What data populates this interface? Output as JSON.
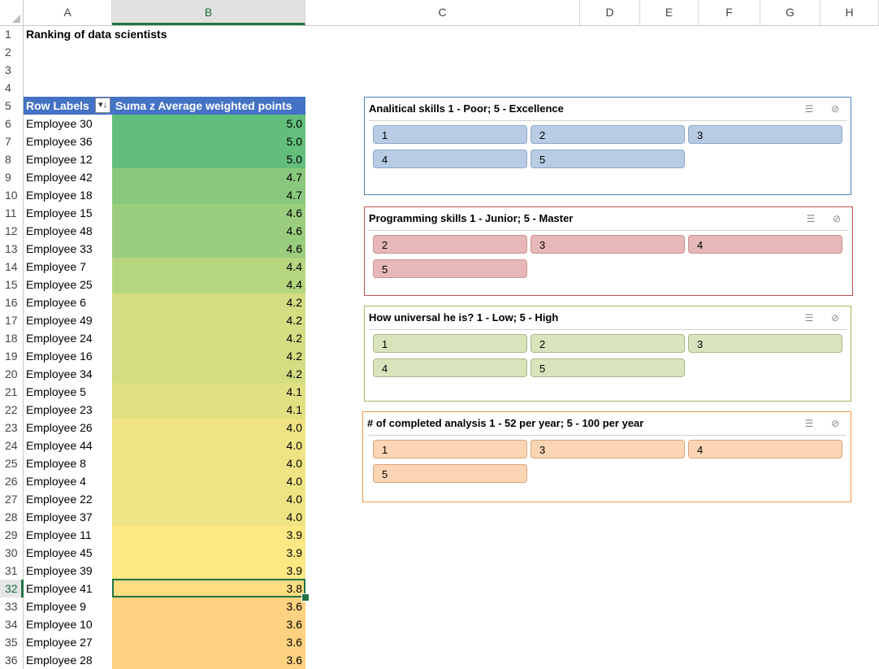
{
  "columns": [
    "A",
    "B",
    "C",
    "D",
    "E",
    "F",
    "G",
    "H"
  ],
  "rows": [
    "1",
    "2",
    "3",
    "4",
    "5",
    "6",
    "7",
    "8",
    "9",
    "10",
    "11",
    "12",
    "13",
    "14",
    "15",
    "16",
    "17",
    "18",
    "19",
    "20",
    "21",
    "22",
    "23",
    "24",
    "25",
    "26",
    "27",
    "28",
    "29",
    "30",
    "31",
    "32",
    "33",
    "34",
    "35",
    "36"
  ],
  "sheet_title": "Ranking of data scientists",
  "pivot": {
    "row_labels_header": "Row Labels",
    "value_header": "Suma z Average weighted points",
    "sort_icon": "sort-descending-filter-icon",
    "selected_row": "32",
    "rows": [
      {
        "label": "Employee 30",
        "value": "5.0",
        "color": "#63be7b"
      },
      {
        "label": "Employee 36",
        "value": "5.0",
        "color": "#63be7b"
      },
      {
        "label": "Employee 12",
        "value": "5.0",
        "color": "#63be7b"
      },
      {
        "label": "Employee 42",
        "value": "4.7",
        "color": "#8ac97d"
      },
      {
        "label": "Employee 18",
        "value": "4.7",
        "color": "#8ac97d"
      },
      {
        "label": "Employee 15",
        "value": "4.6",
        "color": "#9bcd7e"
      },
      {
        "label": "Employee 48",
        "value": "4.6",
        "color": "#9bcd7e"
      },
      {
        "label": "Employee 33",
        "value": "4.6",
        "color": "#9bcd7e"
      },
      {
        "label": "Employee 7",
        "value": "4.4",
        "color": "#b5d57f"
      },
      {
        "label": "Employee 25",
        "value": "4.4",
        "color": "#b5d57f"
      },
      {
        "label": "Employee 6",
        "value": "4.2",
        "color": "#d3dd81"
      },
      {
        "label": "Employee 49",
        "value": "4.2",
        "color": "#d3dd81"
      },
      {
        "label": "Employee 24",
        "value": "4.2",
        "color": "#d3dd81"
      },
      {
        "label": "Employee 16",
        "value": "4.2",
        "color": "#d3dd81"
      },
      {
        "label": "Employee 34",
        "value": "4.2",
        "color": "#d3dd81"
      },
      {
        "label": "Employee 5",
        "value": "4.1",
        "color": "#e0e082"
      },
      {
        "label": "Employee 23",
        "value": "4.1",
        "color": "#e0e082"
      },
      {
        "label": "Employee 26",
        "value": "4.0",
        "color": "#efe483"
      },
      {
        "label": "Employee 44",
        "value": "4.0",
        "color": "#efe483"
      },
      {
        "label": "Employee 8",
        "value": "4.0",
        "color": "#efe483"
      },
      {
        "label": "Employee 4",
        "value": "4.0",
        "color": "#efe483"
      },
      {
        "label": "Employee 22",
        "value": "4.0",
        "color": "#efe483"
      },
      {
        "label": "Employee 37",
        "value": "4.0",
        "color": "#efe483"
      },
      {
        "label": "Employee 11",
        "value": "3.9",
        "color": "#fde984"
      },
      {
        "label": "Employee 45",
        "value": "3.9",
        "color": "#fde984"
      },
      {
        "label": "Employee 39",
        "value": "3.9",
        "color": "#fde984"
      },
      {
        "label": "Employee 41",
        "value": "3.8",
        "color": "#fedd81"
      },
      {
        "label": "Employee 9",
        "value": "3.6",
        "color": "#fed280"
      },
      {
        "label": "Employee 10",
        "value": "3.6",
        "color": "#fed280"
      },
      {
        "label": "Employee 27",
        "value": "3.6",
        "color": "#fed280"
      },
      {
        "label": "Employee 28",
        "value": "3.6",
        "color": "#fed280"
      }
    ]
  },
  "slicers": [
    {
      "title": "Analitical skills 1 - Poor; 5 - Excellence",
      "items": [
        "1",
        "2",
        "3",
        "4",
        "5"
      ],
      "accent": "#4f81bd",
      "fill": "#b8cce4",
      "border": "#8fa8c8"
    },
    {
      "title": "Programming skills 1 - Junior; 5 - Master",
      "items": [
        "2",
        "3",
        "4",
        "5"
      ],
      "accent": "#c0504d",
      "fill": "#e6b8b7",
      "border": "#c99392"
    },
    {
      "title": "How universal he is? 1 - Low; 5 - High",
      "items": [
        "1",
        "2",
        "3",
        "4",
        "5"
      ],
      "accent": "#9bbb59",
      "fill": "#d8e4bc",
      "border": "#a8b889"
    },
    {
      "title": "# of completed analysis 1 - 52 per year; 5 - 100 per year",
      "items": [
        "1",
        "3",
        "4",
        "5"
      ],
      "accent": "#f79646",
      "fill": "#fcd5b4",
      "border": "#d6a57c"
    }
  ],
  "slicer_icons": [
    "multi-select-icon",
    "clear-filter-icon"
  ]
}
